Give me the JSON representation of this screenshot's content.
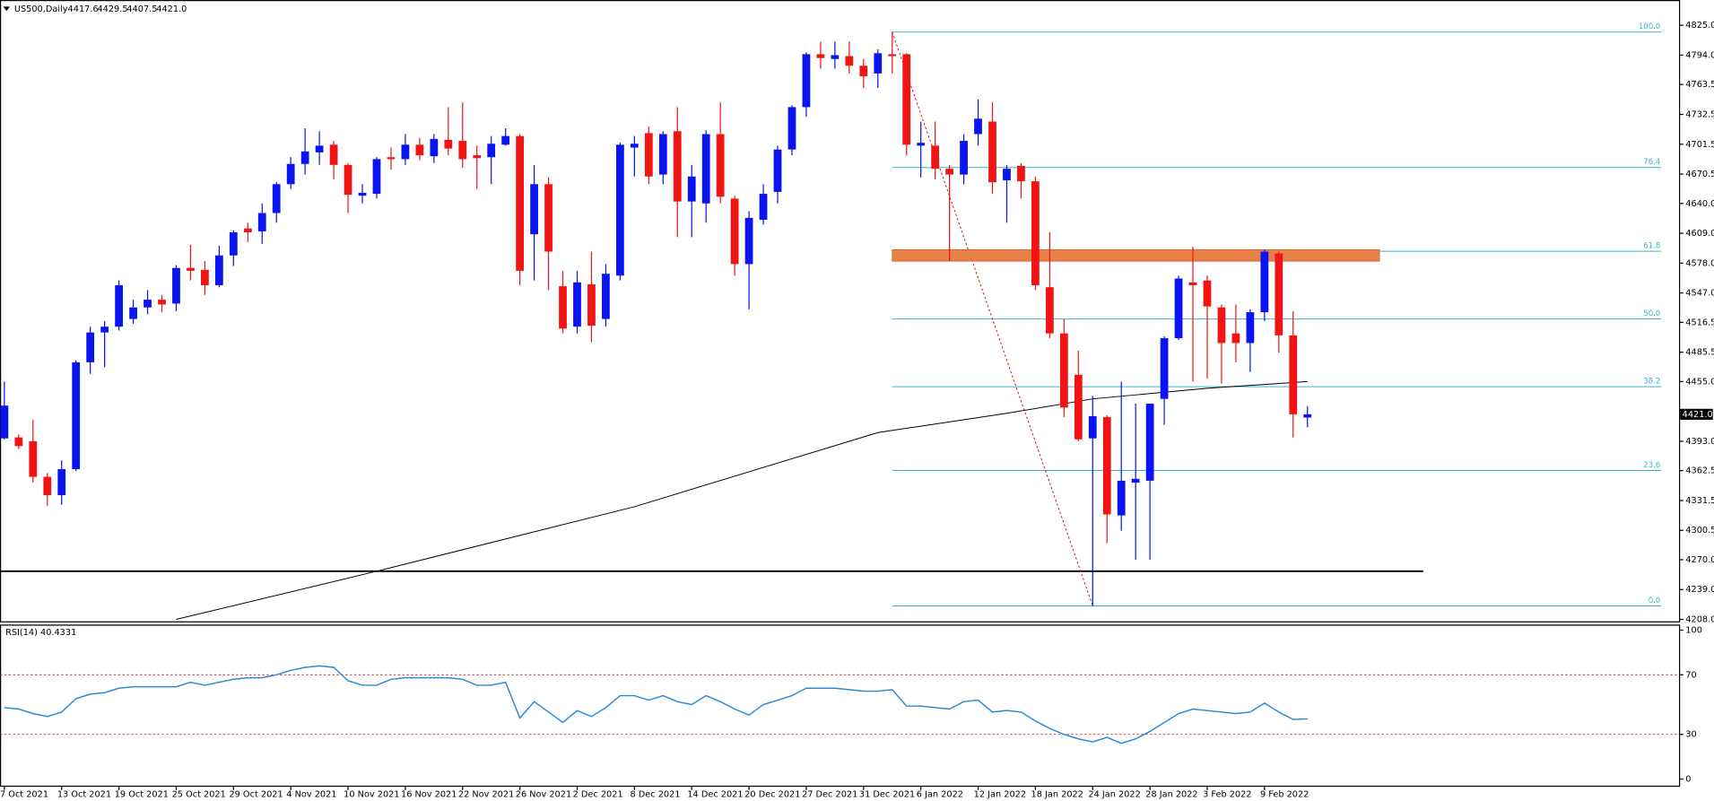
{
  "chart_data": {
    "type": "candlestick",
    "header": {
      "symbol": "US500,Daily",
      "ohlc": [
        "4417.6",
        "4429.5",
        "4407.5",
        "4421.0"
      ]
    },
    "categories": [
      "7 Oct 2021",
      null,
      null,
      null,
      "13 Oct 2021",
      null,
      null,
      null,
      "19 Oct 2021",
      null,
      null,
      null,
      "25 Oct 2021",
      null,
      null,
      null,
      "29 Oct 2021",
      null,
      null,
      null,
      "4 Nov 2021",
      null,
      null,
      null,
      "10 Nov 2021",
      null,
      null,
      null,
      "16 Nov 2021",
      null,
      null,
      null,
      "22 Nov 2021",
      null,
      null,
      null,
      "26 Nov 2021",
      null,
      null,
      null,
      "2 Dec 2021",
      null,
      null,
      null,
      "8 Dec 2021",
      null,
      null,
      null,
      "14 Dec 2021",
      null,
      null,
      null,
      "20 Dec 2021",
      null,
      null,
      null,
      "27 Dec 2021",
      null,
      null,
      null,
      "31 Dec 2021",
      null,
      null,
      null,
      "6 Jan 2022",
      null,
      null,
      null,
      "12 Jan 2022",
      null,
      null,
      null,
      "18 Jan 2022",
      null,
      null,
      null,
      "24 Jan 2022",
      null,
      null,
      null,
      "28 Jan 2022",
      null,
      null,
      null,
      "3 Feb 2022",
      null,
      null,
      null,
      "9 Feb 2022",
      null,
      null,
      null
    ],
    "open": [
      4396,
      4397,
      4393,
      4356,
      4337,
      4364,
      4475,
      4506,
      4512,
      4520,
      4532,
      4540,
      4536,
      4573,
      4571,
      4555,
      4586,
      4614,
      4611,
      4630,
      4660,
      4681,
      4693,
      4701,
      4680,
      4648,
      4650,
      4688,
      4686,
      4701,
      4689,
      4706,
      4705,
      4690,
      4688,
      4701,
      4710,
      4608,
      4660,
      4554,
      4512,
      4556,
      4520,
      4565,
      4698,
      4713,
      4670,
      4715,
      4642,
      4640,
      4712,
      4645,
      4577,
      4623,
      4652,
      4696,
      4740,
      4795,
      4790,
      4793,
      4783,
      4775,
      4795,
      4795,
      4700,
      4700,
      4676,
      4670,
      4712,
      4725,
      4664,
      4679,
      4663,
      4553,
      4505,
      4462,
      4396,
      4418,
      4316,
      4350,
      4352,
      4437,
      4500,
      4558,
      4560,
      4532,
      4505,
      4495,
      4527,
      4588,
      4503,
      4417.6
    ],
    "high": [
      4455,
      4400,
      4415,
      4360,
      4373,
      4477,
      4512,
      4518,
      4560,
      4540,
      4550,
      4545,
      4576,
      4597,
      4580,
      4596,
      4612,
      4620,
      4640,
      4662,
      4688,
      4718,
      4715,
      4705,
      4682,
      4660,
      4688,
      4698,
      4712,
      4708,
      4712,
      4740,
      4745,
      4700,
      4710,
      4718,
      4712,
      4680,
      4667,
      4570,
      4570,
      4590,
      4577,
      4703,
      4710,
      4720,
      4715,
      4740,
      4680,
      4716,
      4745,
      4648,
      4632,
      4660,
      4700,
      4742,
      4797,
      4808,
      4808,
      4808,
      4790,
      4800,
      4818,
      4796,
      4725,
      4725,
      4680,
      4712,
      4748,
      4745,
      4680,
      4682,
      4668,
      4610,
      4520,
      4487,
      4440,
      4420,
      4455,
      4432,
      4432,
      4502,
      4565,
      4595,
      4565,
      4535,
      4535,
      4530,
      4592,
      4590,
      4528,
      4429.5
    ],
    "low": [
      4395,
      4385,
      4350,
      4326,
      4327,
      4362,
      4463,
      4470,
      4508,
      4515,
      4525,
      4527,
      4528,
      4560,
      4545,
      4553,
      4575,
      4600,
      4598,
      4620,
      4655,
      4670,
      4680,
      4665,
      4630,
      4640,
      4645,
      4675,
      4680,
      4685,
      4682,
      4690,
      4677,
      4655,
      4660,
      4700,
      4555,
      4560,
      4550,
      4505,
      4505,
      4496,
      4512,
      4560,
      4668,
      4660,
      4660,
      4605,
      4605,
      4620,
      4640,
      4565,
      4530,
      4618,
      4640,
      4690,
      4730,
      4780,
      4780,
      4775,
      4760,
      4760,
      4775,
      4690,
      4667,
      4665,
      4580,
      4660,
      4700,
      4650,
      4620,
      4645,
      4550,
      4500,
      4418,
      4393,
      4222,
      4287,
      4300,
      4270,
      4270,
      4410,
      4498,
      4455,
      4458,
      4453,
      4475,
      4465,
      4518,
      4485,
      4397,
      4407.5
    ],
    "close": [
      4430,
      4388,
      4356,
      4337,
      4364,
      4475,
      4506,
      4512,
      4555,
      4532,
      4540,
      4535,
      4573,
      4570,
      4555,
      4586,
      4610,
      4610,
      4630,
      4660,
      4681,
      4694,
      4700,
      4680,
      4649,
      4651,
      4686,
      4686,
      4701,
      4690,
      4707,
      4697,
      4686,
      4687,
      4702,
      4710,
      4570,
      4660,
      4590,
      4510,
      4558,
      4513,
      4567,
      4701,
      4702,
      4668,
      4712,
      4642,
      4668,
      4712,
      4647,
      4577,
      4625,
      4650,
      4696,
      4740,
      4795,
      4791,
      4794,
      4783,
      4772,
      4796,
      4793,
      4701,
      4703,
      4676,
      4670,
      4705,
      4728,
      4662,
      4676,
      4663,
      4555,
      4505,
      4428,
      4395,
      4419,
      4317,
      4352,
      4354,
      4432,
      4500,
      4562,
      4555,
      4533,
      4495,
      4495,
      4527,
      4590,
      4503,
      4421,
      4421.0
    ],
    "up_color": "#0a14f0",
    "down_color": "#f01414",
    "ylim": [
      4206,
      4849
    ],
    "yticks": [
      {
        "value": 4825,
        "label": "4825.0"
      },
      {
        "value": 4794,
        "label": "4794.0"
      },
      4763.5,
      4732.5,
      4701.5,
      4670.5,
      {
        "value": 4640,
        "label": "4640.0"
      },
      {
        "value": 4609,
        "label": "4609.0"
      },
      {
        "value": 4578,
        "label": "4578.0"
      },
      {
        "value": 4547,
        "label": "4547.0"
      },
      4516.5,
      4485.5,
      {
        "value": 4455,
        "label": "4455.0"
      },
      {
        "value": 4393,
        "label": "4393.0"
      },
      4362.5,
      4331.5,
      4300.5,
      {
        "value": 4270,
        "label": "4270.0"
      },
      {
        "value": 4239,
        "label": "4239.0"
      },
      {
        "value": 4208,
        "label": "4208.0"
      }
    ],
    "last_price": {
      "value": 4421,
      "label": "4421.0"
    },
    "ma": {
      "color": "#000000",
      "x": [
        12,
        26,
        44,
        61,
        70,
        76,
        84,
        91
      ],
      "values": [
        4208,
        4258,
        4325,
        4402,
        4422,
        4437,
        4448,
        4455
      ]
    },
    "support": 4258,
    "zone": {
      "color": "#e8804a",
      "range": [
        4580,
        4592
      ]
    },
    "fib": {
      "color": "#3cb4c8",
      "high": 4818,
      "low": 4222,
      "levels": [
        {
          "value": 100,
          "label": "100.0"
        },
        76.4,
        61.8,
        {
          "value": 50,
          "label": "50.0"
        },
        38.2,
        23.6,
        {
          "value": 0,
          "label": "0.0"
        }
      ]
    },
    "rsi": {
      "title": "RSI(14) 40.4331",
      "color": "#2a8ad8",
      "ylim": [
        -4.4,
        103.7
      ],
      "yticks": [
        100,
        70,
        30,
        0
      ],
      "levels": [
        70,
        30
      ],
      "values": [
        48,
        47,
        44,
        42,
        45,
        54,
        57,
        58,
        61,
        62,
        62,
        62,
        62,
        65,
        63,
        65,
        67,
        68,
        68,
        70,
        73,
        75,
        76,
        75,
        66,
        63,
        63,
        67,
        68,
        68,
        68,
        68,
        67,
        63,
        63,
        65,
        41,
        52,
        45,
        38,
        46,
        42,
        48,
        56,
        56,
        53,
        56,
        52,
        50,
        56,
        52,
        47,
        43,
        50,
        53,
        56,
        61,
        61,
        61,
        60,
        59,
        59,
        60,
        49,
        49,
        48,
        47,
        52,
        53,
        45,
        46,
        45,
        39,
        34,
        30,
        27,
        25,
        28,
        24,
        27,
        32,
        38,
        44,
        47,
        46,
        45,
        44,
        45,
        51,
        45,
        40,
        40.4331
      ]
    }
  }
}
